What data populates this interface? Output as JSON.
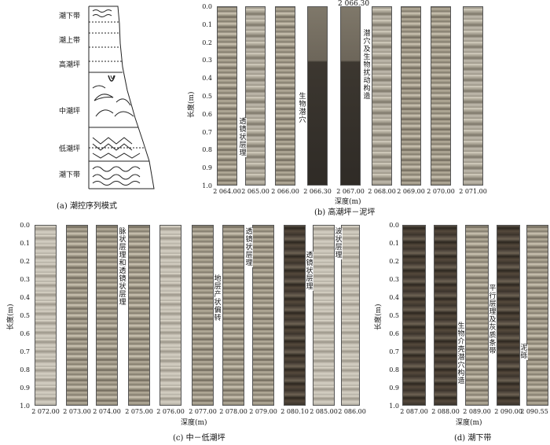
{
  "panel_a": {
    "zones": [
      "潮下带",
      "潮上带",
      "高潮坪",
      "中潮坪",
      "低潮坪",
      "潮下带"
    ],
    "caption": "(a) 潮控序列模式"
  },
  "panel_b": {
    "top_label": "2 066.30",
    "yaxis_label": "长度(m)",
    "y_ticks": [
      "0.0",
      "0.1",
      "0.2",
      "0.3",
      "0.4",
      "0.5",
      "0.6",
      "0.7",
      "0.8",
      "0.9",
      "1.0"
    ],
    "x_ticks": [
      "2 064.00",
      "2 065.00",
      "2 066.00",
      "2 066.30",
      "2 067.00",
      "2 068.00",
      "2 069.00",
      "2 070.00",
      "2 071.00"
    ],
    "xaxis_label": "深度(m)",
    "annotations": [
      "透镜状层理",
      "生物潜穴",
      "潜穴及生物扰动构造"
    ],
    "caption": "(b) 高潮坪－泥坪"
  },
  "panel_c": {
    "yaxis_label": "长度(m)",
    "y_ticks": [
      "0.0",
      "0.1",
      "0.2",
      "0.3",
      "0.4",
      "0.5",
      "0.6",
      "0.7",
      "0.8",
      "0.9",
      "1.0"
    ],
    "x_ticks": [
      "2 072.00",
      "2 073.00",
      "2 074.00",
      "2 075.00",
      "2 076.00",
      "2 077.00",
      "2 078.00",
      "2 079.00",
      "2 080.10",
      "2 085.00",
      "2 086.00"
    ],
    "xaxis_label": "深度(m)",
    "annotations": [
      "脉状层理和透镜状层理",
      "地层产状偏转",
      "透镜状层理",
      "透镜状层理",
      "波状层理"
    ],
    "caption": "(c) 中－低潮坪"
  },
  "panel_d": {
    "yaxis_label": "长度(m)",
    "y_ticks": [
      "0.0",
      "0.1",
      "0.2",
      "0.3",
      "0.4",
      "0.5",
      "0.6",
      "0.7",
      "0.8",
      "0.9",
      "1.0"
    ],
    "x_ticks": [
      "2 087.00",
      "2 088.00",
      "2 089.00",
      "2 090.00",
      "2 090.55"
    ],
    "xaxis_label": "深度(m)",
    "annotations": [
      "生物介壳潜穴构造",
      "平行层理及灰质条带",
      "泥砾"
    ],
    "caption": "(d) 潮下带"
  }
}
